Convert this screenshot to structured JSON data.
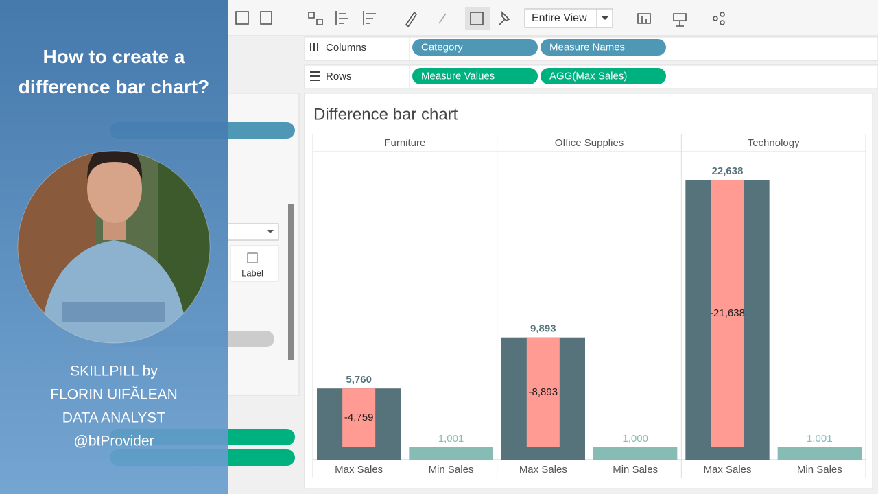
{
  "toolbar": {
    "view_mode": "Entire View"
  },
  "shelves": {
    "columns": {
      "label": "Columns",
      "pills": [
        "Category",
        "Measure Names"
      ]
    },
    "rows": {
      "label": "Rows",
      "pills": [
        "Measure Values",
        "AGG(Max Sales)"
      ]
    }
  },
  "marks_card": {
    "label_button": "Label"
  },
  "promo": {
    "title": "How to create a difference bar chart?",
    "lines": [
      "SKILLPILL by",
      "FLORIN UIFĂLEAN",
      "DATA ANALYST",
      "@btProvider"
    ]
  },
  "chart_data": {
    "type": "bar",
    "title": "Difference bar chart",
    "categories": [
      "Max Sales",
      "Min Sales"
    ],
    "colors": [
      "#56737c",
      "#86bcb4"
    ],
    "difference_color": "#ff9b93",
    "groups": [
      {
        "name": "Furniture",
        "values": [
          5760,
          1001
        ],
        "value_labels": [
          "5,760",
          "1,001"
        ],
        "difference": -4759,
        "difference_label": "-4,759"
      },
      {
        "name": "Office Supplies",
        "values": [
          9893,
          1000
        ],
        "value_labels": [
          "9,893",
          "1,000"
        ],
        "difference": -8893,
        "difference_label": "-8,893"
      },
      {
        "name": "Technology",
        "values": [
          22638,
          1001
        ],
        "value_labels": [
          "22,638",
          "1,001"
        ],
        "difference": -21638,
        "difference_label": "-21,638"
      }
    ]
  }
}
